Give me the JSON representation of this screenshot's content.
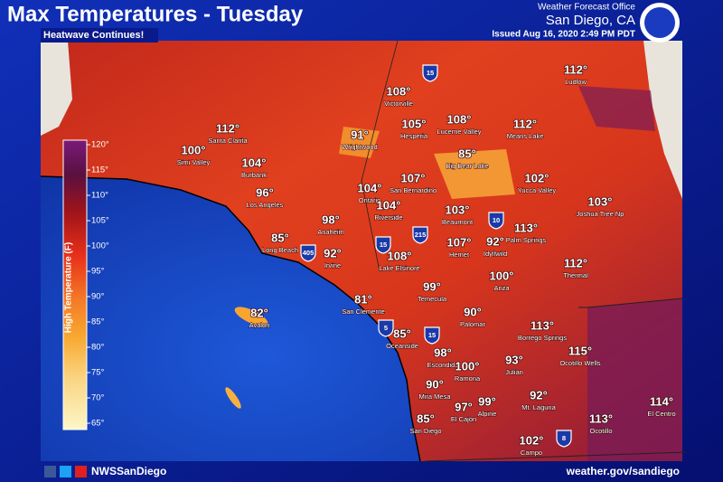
{
  "header": {
    "title": "Max Temperatures - Tuesday",
    "subtitle": "Heatwave Continues!",
    "office": "Weather Forecast Office",
    "location": "San Diego, CA",
    "issued": "Issued Aug 16, 2020 2:49 PM PDT"
  },
  "legend": {
    "title": "High Temperature (F)",
    "ticks": [
      "120°",
      "115°",
      "110°",
      "105°",
      "100°",
      "95°",
      "90°",
      "85°",
      "80°",
      "75°",
      "70°",
      "65°"
    ]
  },
  "places": [
    {
      "name": "Ludlow",
      "temp": "112°"
    },
    {
      "name": "Victorville",
      "temp": "108°"
    },
    {
      "name": "Santa Clarita",
      "temp": "112°"
    },
    {
      "name": "Hesperia",
      "temp": "105°"
    },
    {
      "name": "Lucerne Valley",
      "temp": "108°"
    },
    {
      "name": "Means Lake",
      "temp": "112°"
    },
    {
      "name": "Wrightwood",
      "temp": "91°"
    },
    {
      "name": "Simi Valley",
      "temp": "100°"
    },
    {
      "name": "Burbank",
      "temp": "104°"
    },
    {
      "name": "Big Bear Lake",
      "temp": "85°"
    },
    {
      "name": "San Bernardino",
      "temp": "107°"
    },
    {
      "name": "Yucca Valley",
      "temp": "102°"
    },
    {
      "name": "Ontario",
      "temp": "104°"
    },
    {
      "name": "Los Angeles",
      "temp": "96°"
    },
    {
      "name": "Riverside",
      "temp": "104°"
    },
    {
      "name": "Joshua Tree Np",
      "temp": "103°"
    },
    {
      "name": "Beaumont",
      "temp": "103°"
    },
    {
      "name": "Anaheim",
      "temp": "98°"
    },
    {
      "name": "Palm Springs",
      "temp": "113°"
    },
    {
      "name": "Long Beach",
      "temp": "85°"
    },
    {
      "name": "Irvine",
      "temp": "92°"
    },
    {
      "name": "Hemet",
      "temp": "107°"
    },
    {
      "name": "Idyllwild",
      "temp": "92°"
    },
    {
      "name": "Lake Elsinore",
      "temp": "108°"
    },
    {
      "name": "Thermal",
      "temp": "112°"
    },
    {
      "name": "Anza",
      "temp": "100°"
    },
    {
      "name": "Temecula",
      "temp": "99°"
    },
    {
      "name": "San Clemente",
      "temp": "81°"
    },
    {
      "name": "Avalon",
      "temp": "82°"
    },
    {
      "name": "Palomar",
      "temp": "90°"
    },
    {
      "name": "Borrego Springs",
      "temp": "113°"
    },
    {
      "name": "Oceanside",
      "temp": "85°"
    },
    {
      "name": "Ocotillo Wells",
      "temp": "115°"
    },
    {
      "name": "Escondido",
      "temp": "98°"
    },
    {
      "name": "Julian",
      "temp": "93°"
    },
    {
      "name": "Ramona",
      "temp": "100°"
    },
    {
      "name": "Mira Mesa",
      "temp": "90°"
    },
    {
      "name": "Mt. Laguna",
      "temp": "92°"
    },
    {
      "name": "Alpine",
      "temp": "99°"
    },
    {
      "name": "El Cajon",
      "temp": "97°"
    },
    {
      "name": "El Centro",
      "temp": "114°"
    },
    {
      "name": "San Diego",
      "temp": "85°"
    },
    {
      "name": "Ocotillo",
      "temp": "113°"
    },
    {
      "name": "Campo",
      "temp": "102°"
    }
  ],
  "shields": [
    "15",
    "10",
    "215",
    "15",
    "405",
    "5",
    "15",
    "8"
  ],
  "footer": {
    "social": "NWSSanDiego",
    "website": "weather.gov/sandiego"
  }
}
